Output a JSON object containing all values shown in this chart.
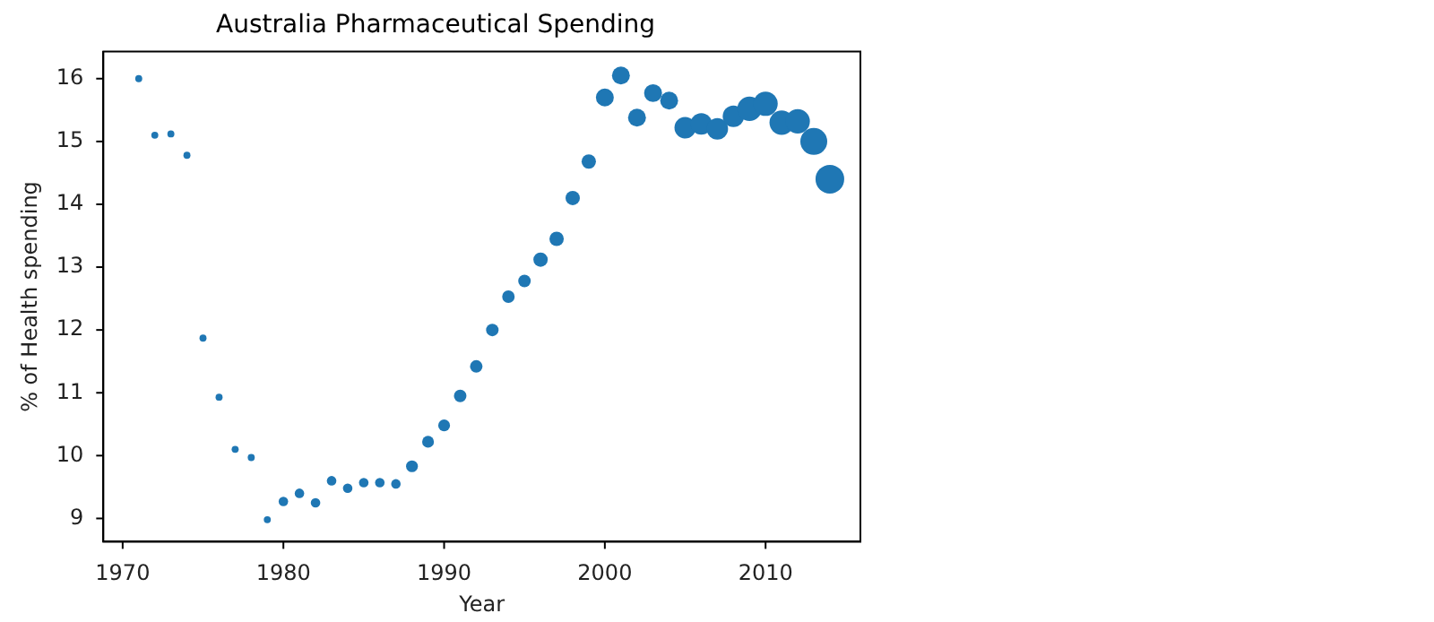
{
  "chart_data": {
    "type": "bubble",
    "title": "Australia Pharmaceutical Spending",
    "xlabel": "Year",
    "ylabel": "% of Health spending",
    "x": [
      1971,
      1972,
      1973,
      1974,
      1975,
      1976,
      1977,
      1978,
      1979,
      1980,
      1981,
      1982,
      1983,
      1984,
      1985,
      1986,
      1987,
      1988,
      1989,
      1990,
      1991,
      1992,
      1993,
      1994,
      1995,
      1996,
      1997,
      1998,
      1999,
      2000,
      2001,
      2002,
      2003,
      2004,
      2005,
      2006,
      2007,
      2008,
      2009,
      2010,
      2011,
      2012,
      2013,
      2014
    ],
    "series": [
      {
        "color": "#1f77b4",
        "values": [
          16.0,
          15.1,
          15.12,
          14.78,
          11.87,
          10.93,
          10.1,
          9.97,
          8.98,
          9.27,
          9.4,
          9.25,
          9.6,
          9.48,
          9.57,
          9.57,
          9.55,
          9.83,
          10.22,
          10.48,
          10.95,
          11.42,
          12.0,
          12.53,
          12.78,
          13.12,
          13.45,
          14.1,
          14.68,
          15.7,
          16.05,
          15.38,
          15.77,
          15.65,
          15.22,
          15.28,
          15.2,
          15.4,
          15.52,
          15.6,
          15.3,
          15.32,
          15.0,
          14.4
        ],
        "sizes": [
          0.06,
          0.06,
          0.06,
          0.06,
          0.06,
          0.06,
          0.06,
          0.06,
          0.06,
          0.11,
          0.11,
          0.11,
          0.11,
          0.11,
          0.11,
          0.11,
          0.11,
          0.17,
          0.17,
          0.17,
          0.19,
          0.19,
          0.19,
          0.19,
          0.19,
          0.25,
          0.25,
          0.25,
          0.25,
          0.39,
          0.39,
          0.39,
          0.39,
          0.39,
          0.56,
          0.56,
          0.56,
          0.56,
          0.72,
          0.72,
          0.72,
          0.72,
          0.88,
          1
        ]
      }
    ],
    "xlim": [
      1968.8,
      2015.9
    ],
    "xticks": [
      1970,
      1980,
      1990,
      2000,
      2010
    ],
    "ylim": [
      8.63,
      16.43
    ],
    "yticks": [
      9,
      10,
      11,
      12,
      13,
      14,
      15,
      16
    ],
    "grid": false,
    "legend": false
  }
}
